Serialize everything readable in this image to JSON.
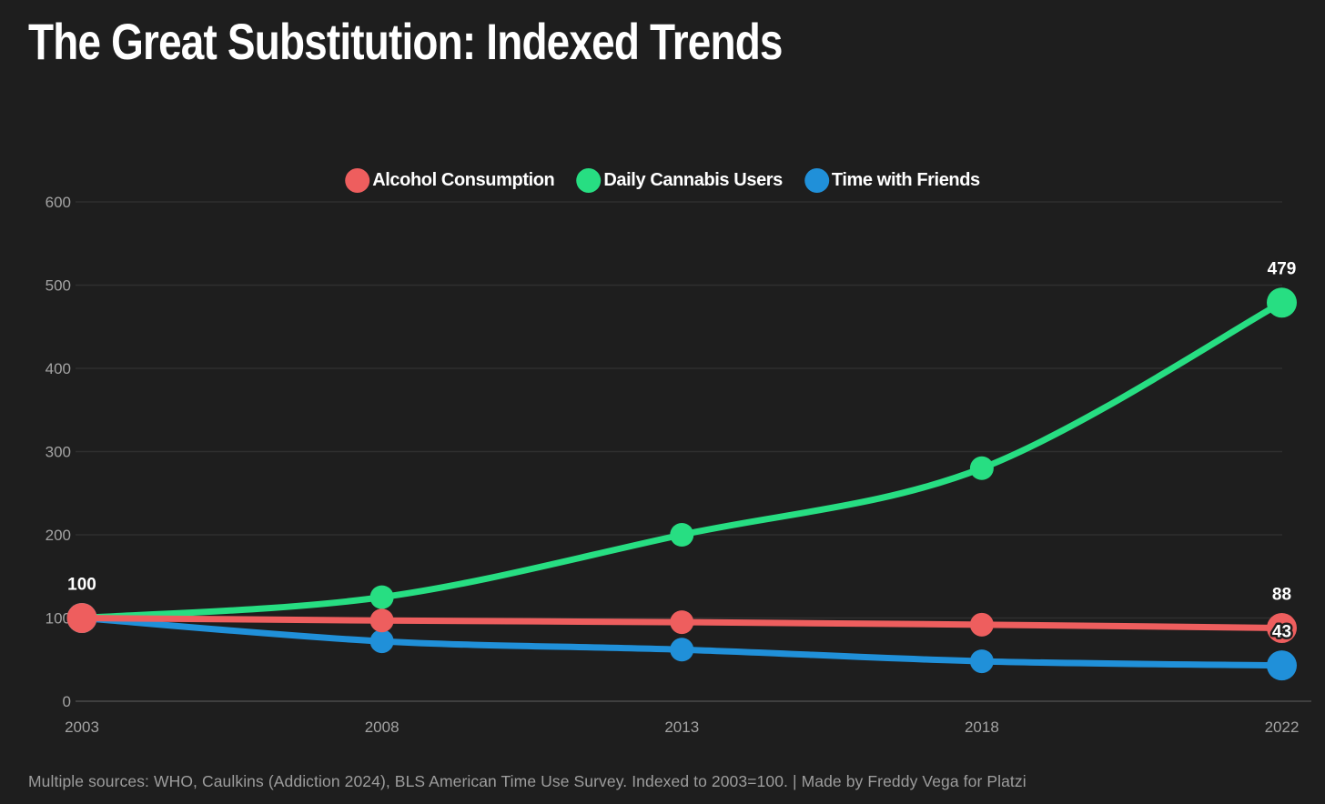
{
  "title": "The Great Substitution: Indexed Trends",
  "footer": "Multiple sources: WHO, Caulkins (Addiction 2024), BLS American Time Use Survey. Indexed to 2003=100. | Made by Freddy Vega for Platzi",
  "colors": {
    "background": "#1e1e1e",
    "grid": "#2f2f2f",
    "axis_line": "#3f3f3f",
    "tick_text": "#a3a3a3",
    "point_label_text": "#ffffff",
    "title_text": "#ffffff"
  },
  "chart_data": {
    "type": "line",
    "title": "The Great Substitution: Indexed Trends",
    "categories": [
      "2003",
      "2008",
      "2013",
      "2018",
      "2022"
    ],
    "series": [
      {
        "id": "alcohol",
        "name": "Alcohol Consumption",
        "color": "#ee5e5e",
        "values": [
          100,
          97,
          95,
          92,
          88
        ]
      },
      {
        "id": "cannabis",
        "name": "Daily Cannabis Users",
        "color": "#27de82",
        "values": [
          100,
          125,
          200,
          280,
          479
        ]
      },
      {
        "id": "friends",
        "name": "Time with Friends",
        "color": "#2090d9",
        "values": [
          100,
          72,
          62,
          48,
          43
        ]
      }
    ],
    "yticks": [
      0,
      100,
      200,
      300,
      400,
      500,
      600
    ],
    "ylim": [
      0,
      600
    ],
    "grid": "horizontal",
    "legend_position": "top",
    "point_labels": [
      {
        "text": "100",
        "series": 0,
        "index": 0
      },
      {
        "text": "479",
        "series": 1,
        "index": 4
      },
      {
        "text": "88",
        "series": 0,
        "index": 4
      },
      {
        "text": "43",
        "series": 2,
        "index": 4
      }
    ],
    "note": "Indexed to 2003=100; x categories equally spaced"
  }
}
